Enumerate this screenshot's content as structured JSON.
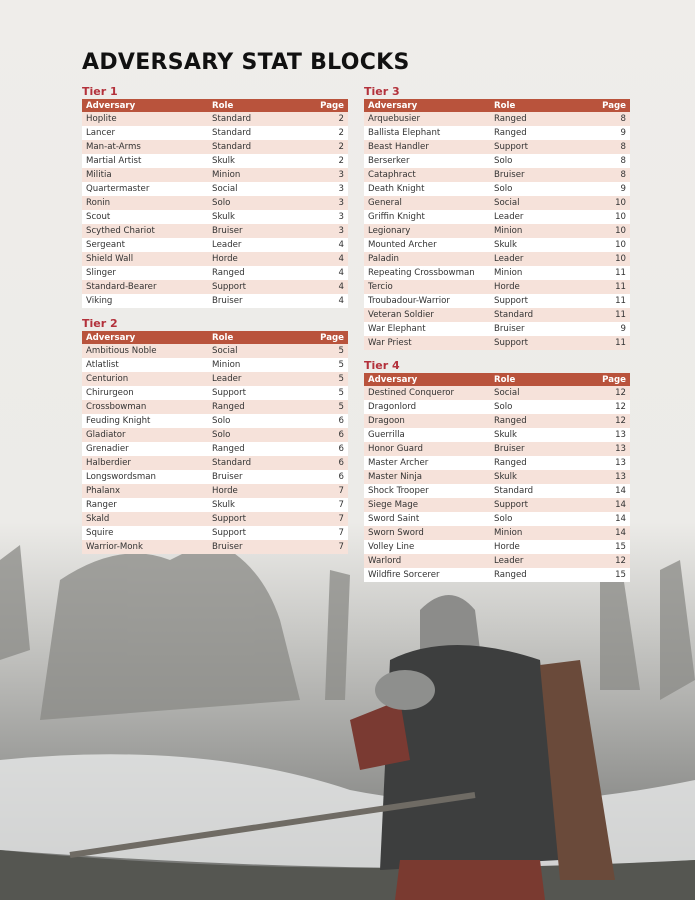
{
  "title": "ADVERSARY STAT BLOCKS",
  "columns": [
    "Adversary",
    "Role",
    "Page"
  ],
  "tiers": [
    {
      "label": "Tier 1",
      "rows": [
        [
          "Hoplite",
          "Standard",
          "2"
        ],
        [
          "Lancer",
          "Standard",
          "2"
        ],
        [
          "Man-at-Arms",
          "Standard",
          "2"
        ],
        [
          "Martial Artist",
          "Skulk",
          "2"
        ],
        [
          "Militia",
          "Minion",
          "3"
        ],
        [
          "Quartermaster",
          "Social",
          "3"
        ],
        [
          "Ronin",
          "Solo",
          "3"
        ],
        [
          "Scout",
          "Skulk",
          "3"
        ],
        [
          "Scythed Chariot",
          "Bruiser",
          "3"
        ],
        [
          "Sergeant",
          "Leader",
          "4"
        ],
        [
          "Shield Wall",
          "Horde",
          "4"
        ],
        [
          "Slinger",
          "Ranged",
          "4"
        ],
        [
          "Standard-Bearer",
          "Support",
          "4"
        ],
        [
          "Viking",
          "Bruiser",
          "4"
        ]
      ]
    },
    {
      "label": "Tier 2",
      "rows": [
        [
          "Ambitious Noble",
          "Social",
          "5"
        ],
        [
          "Atlatlist",
          "Minion",
          "5"
        ],
        [
          "Centurion",
          "Leader",
          "5"
        ],
        [
          "Chirurgeon",
          "Support",
          "5"
        ],
        [
          "Crossbowman",
          "Ranged",
          "5"
        ],
        [
          "Feuding Knight",
          "Solo",
          "6"
        ],
        [
          "Gladiator",
          "Solo",
          "6"
        ],
        [
          "Grenadier",
          "Ranged",
          "6"
        ],
        [
          "Halberdier",
          "Standard",
          "6"
        ],
        [
          "Longswordsman",
          "Bruiser",
          "6"
        ],
        [
          "Phalanx",
          "Horde",
          "7"
        ],
        [
          "Ranger",
          "Skulk",
          "7"
        ],
        [
          "Skald",
          "Support",
          "7"
        ],
        [
          "Squire",
          "Support",
          "7"
        ],
        [
          "Warrior-Monk",
          "Bruiser",
          "7"
        ]
      ]
    },
    {
      "label": "Tier 3",
      "rows": [
        [
          "Arquebusier",
          "Ranged",
          "8"
        ],
        [
          "Ballista Elephant",
          "Ranged",
          "9"
        ],
        [
          "Beast Handler",
          "Support",
          "8"
        ],
        [
          "Berserker",
          "Solo",
          "8"
        ],
        [
          "Cataphract",
          "Bruiser",
          "8"
        ],
        [
          "Death Knight",
          "Solo",
          "9"
        ],
        [
          "General",
          "Social",
          "10"
        ],
        [
          "Griffin Knight",
          "Leader",
          "10"
        ],
        [
          "Legionary",
          "Minion",
          "10"
        ],
        [
          "Mounted Archer",
          "Skulk",
          "10"
        ],
        [
          "Paladin",
          "Leader",
          "10"
        ],
        [
          "Repeating Crossbowman",
          "Minion",
          "11"
        ],
        [
          "Tercio",
          "Horde",
          "11"
        ],
        [
          "Troubadour-Warrior",
          "Support",
          "11"
        ],
        [
          "Veteran Soldier",
          "Standard",
          "11"
        ],
        [
          "War Elephant",
          "Bruiser",
          "9"
        ],
        [
          "War Priest",
          "Support",
          "11"
        ]
      ]
    },
    {
      "label": "Tier 4",
      "rows": [
        [
          "Destined Conqueror",
          "Social",
          "12"
        ],
        [
          "Dragonlord",
          "Solo",
          "12"
        ],
        [
          "Dragoon",
          "Ranged",
          "12"
        ],
        [
          "Guerrilla",
          "Skulk",
          "13"
        ],
        [
          "Honor Guard",
          "Bruiser",
          "13"
        ],
        [
          "Master Archer",
          "Ranged",
          "13"
        ],
        [
          "Master Ninja",
          "Skulk",
          "13"
        ],
        [
          "Shock Trooper",
          "Standard",
          "14"
        ],
        [
          "Siege Mage",
          "Support",
          "14"
        ],
        [
          "Sword Saint",
          "Solo",
          "14"
        ],
        [
          "Sworn Sword",
          "Minion",
          "14"
        ],
        [
          "Volley Line",
          "Horde",
          "15"
        ],
        [
          "Warlord",
          "Leader",
          "12"
        ],
        [
          "Wildfire Sorcerer",
          "Ranged",
          "15"
        ]
      ]
    }
  ],
  "colors": {
    "header": "#b9533c",
    "tier_label": "#b3313b",
    "alt_row": "#f6e2da"
  }
}
